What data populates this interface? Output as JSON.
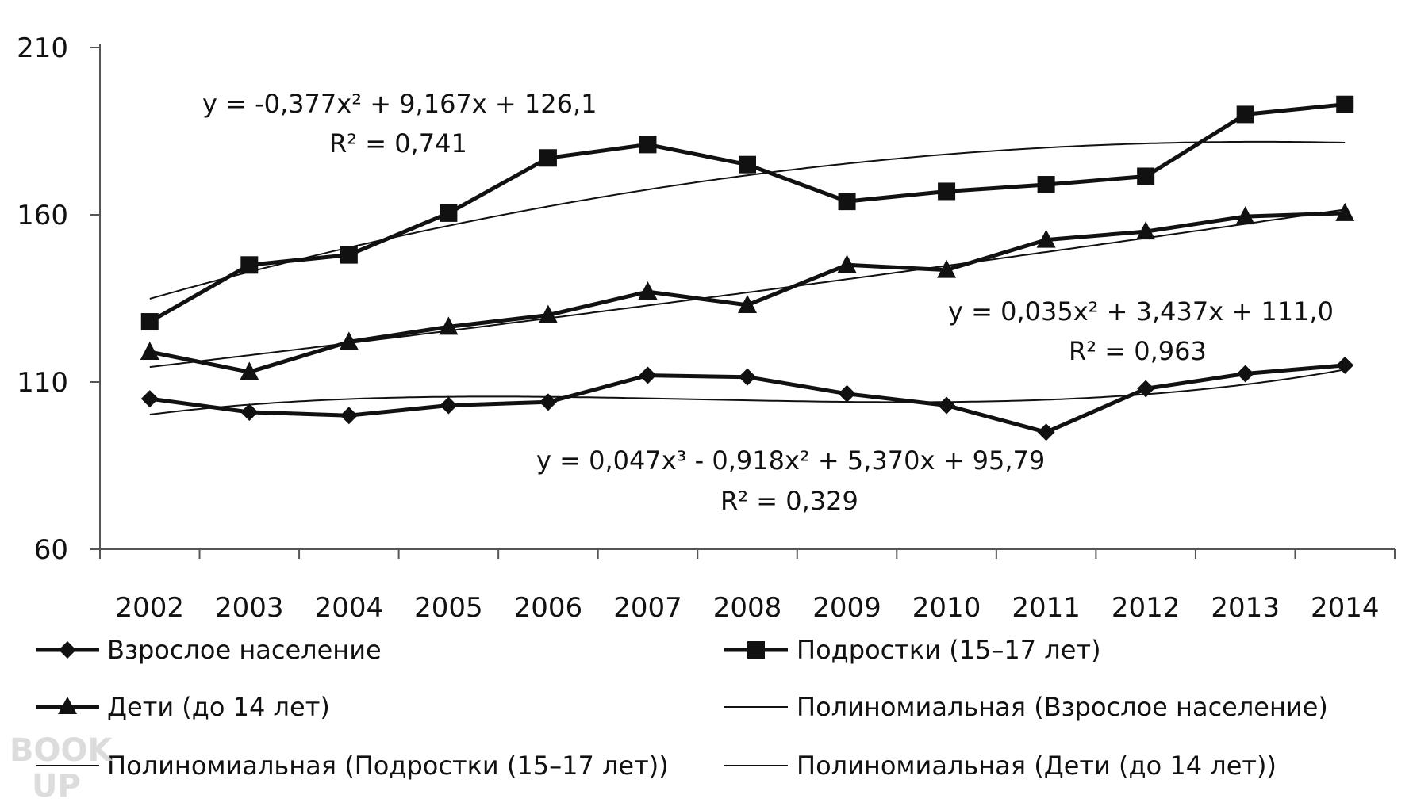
{
  "chart_data": {
    "type": "line",
    "x": [
      "2002",
      "2003",
      "2004",
      "2005",
      "2006",
      "2007",
      "2008",
      "2009",
      "2010",
      "2011",
      "2012",
      "2013",
      "2014"
    ],
    "ylim": [
      60,
      210
    ],
    "yticks": [
      "210",
      "160",
      "110",
      "60"
    ],
    "ytick_values": [
      210,
      160,
      110,
      60
    ],
    "series": [
      {
        "name": "Взрослое население",
        "marker": "diamond",
        "values": [
          105,
          101,
          100,
          103,
          104,
          112,
          111.5,
          106.5,
          103,
          95,
          108,
          112.5,
          115
        ]
      },
      {
        "name": "Подростки (15–17 лет)",
        "marker": "square",
        "values": [
          128,
          145,
          148,
          160.5,
          177,
          181,
          175,
          164,
          167,
          169,
          171.5,
          190,
          193
        ]
      },
      {
        "name": "Дети (до 14 лет)",
        "marker": "triangle",
        "values": [
          119,
          113,
          122,
          126.5,
          130,
          137,
          133,
          145,
          143.5,
          152.5,
          155,
          159.5,
          160.5
        ]
      }
    ],
    "trendlines": [
      {
        "name": "Полиномиальная (Взрослое население)",
        "series": 0,
        "degree": 3,
        "coefficients": [
          0.047,
          -0.918,
          5.37,
          95.79
        ],
        "equation": "y = 0,047x³ - 0,918x² + 5,370x + 95,79",
        "r2": "R² = 0,329"
      },
      {
        "name": "Полиномиальная (Подростки (15–17 лет))",
        "series": 1,
        "degree": 2,
        "coefficients": [
          -0.377,
          9.167,
          126.1
        ],
        "equation": "y = -0,377x² + 9,167x + 126,1",
        "r2": "R² = 0,741"
      },
      {
        "name": "Полиномиальная (Дети (до 14 лет))",
        "series": 2,
        "degree": 2,
        "coefficients": [
          0.035,
          3.437,
          111.0
        ],
        "equation": "y = 0,035x² + 3,437x + 111,0",
        "r2": "R² = 0,963"
      }
    ],
    "grid": false,
    "legend_position": "bottom"
  },
  "legend": [
    {
      "label": "Взрослое население",
      "marker": "diamond",
      "line": "thick"
    },
    {
      "label": "Подростки (15–17 лет)",
      "marker": "square",
      "line": "thick"
    },
    {
      "label": "Дети (до 14 лет)",
      "marker": "triangle",
      "line": "thick"
    },
    {
      "label": "Полиномиальная (Взрослое население)",
      "marker": "none",
      "line": "thin"
    },
    {
      "label": "Полиномиальная (Подростки (15–17 лет))",
      "marker": "none",
      "line": "thin"
    },
    {
      "label": "Полиномиальная (Дети (до 14 лет))",
      "marker": "none",
      "line": "thin"
    }
  ],
  "watermark": {
    "top": "BOOK",
    "bottom": "UP"
  },
  "colors": {
    "series": "#111111",
    "axis": "#555555",
    "watermark": "#d6d6d6"
  }
}
